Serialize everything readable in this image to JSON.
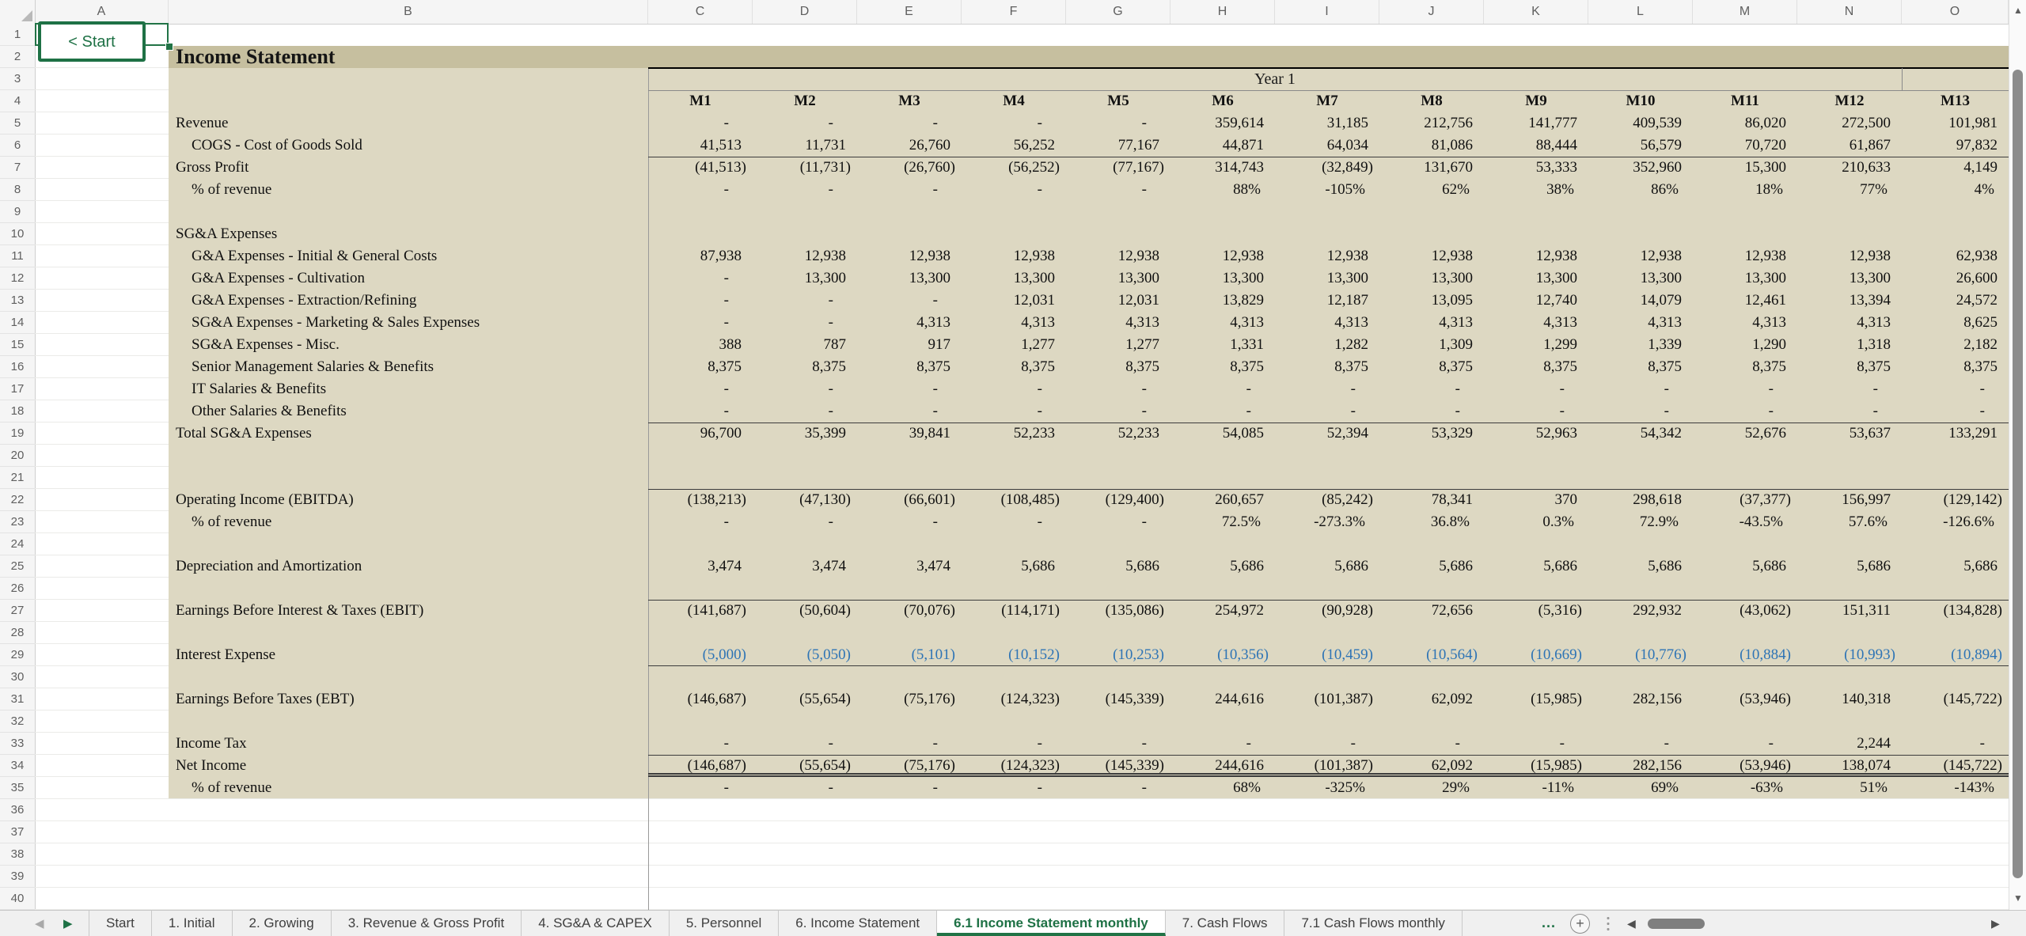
{
  "sheet": {
    "start_button_label": "< Start",
    "title": "Income Statement",
    "year_header": "Year 1",
    "column_letters": [
      "A",
      "B",
      "C",
      "D",
      "E",
      "F",
      "G",
      "H",
      "I",
      "J",
      "K",
      "L",
      "M",
      "N",
      "O"
    ],
    "row_count": 40,
    "month_headers": [
      "M1",
      "M2",
      "M3",
      "M4",
      "M5",
      "M6",
      "M7",
      "M8",
      "M9",
      "M10",
      "M11",
      "M12",
      "M13"
    ],
    "rows": [
      {
        "n": 5,
        "label": "Revenue",
        "indent": 0,
        "values": [
          "-",
          "-",
          "-",
          "-",
          "-",
          "359,614",
          "31,185",
          "212,756",
          "141,777",
          "409,539",
          "86,020",
          "272,500",
          "101,981"
        ]
      },
      {
        "n": 6,
        "label": "COGS - Cost of Goods Sold",
        "indent": 1,
        "values": [
          "41,513",
          "11,731",
          "26,760",
          "56,252",
          "77,167",
          "44,871",
          "64,034",
          "81,086",
          "88,444",
          "56,579",
          "70,720",
          "61,867",
          "97,832"
        ]
      },
      {
        "n": 7,
        "label": "Gross Profit",
        "indent": 0,
        "border": "top",
        "values": [
          "(41,513)",
          "(11,731)",
          "(26,760)",
          "(56,252)",
          "(77,167)",
          "314,743",
          "(32,849)",
          "131,670",
          "53,333",
          "352,960",
          "15,300",
          "210,633",
          "4,149"
        ]
      },
      {
        "n": 8,
        "label": "% of revenue",
        "indent": 1,
        "values": [
          "-",
          "-",
          "-",
          "-",
          "-",
          "88%",
          "-105%",
          "62%",
          "38%",
          "86%",
          "18%",
          "77%",
          "4%"
        ]
      },
      {
        "n": 10,
        "label": "SG&A Expenses",
        "indent": 0,
        "values": []
      },
      {
        "n": 11,
        "label": "G&A Expenses - Initial & General Costs",
        "indent": 1,
        "values": [
          "87,938",
          "12,938",
          "12,938",
          "12,938",
          "12,938",
          "12,938",
          "12,938",
          "12,938",
          "12,938",
          "12,938",
          "12,938",
          "12,938",
          "62,938"
        ]
      },
      {
        "n": 12,
        "label": "G&A Expenses - Cultivation",
        "indent": 1,
        "values": [
          "-",
          "13,300",
          "13,300",
          "13,300",
          "13,300",
          "13,300",
          "13,300",
          "13,300",
          "13,300",
          "13,300",
          "13,300",
          "13,300",
          "26,600"
        ]
      },
      {
        "n": 13,
        "label": "G&A Expenses - Extraction/Refining",
        "indent": 1,
        "values": [
          "-",
          "-",
          "-",
          "12,031",
          "12,031",
          "13,829",
          "12,187",
          "13,095",
          "12,740",
          "14,079",
          "12,461",
          "13,394",
          "24,572"
        ]
      },
      {
        "n": 14,
        "label": "SG&A Expenses - Marketing & Sales Expenses",
        "indent": 1,
        "values": [
          "-",
          "-",
          "4,313",
          "4,313",
          "4,313",
          "4,313",
          "4,313",
          "4,313",
          "4,313",
          "4,313",
          "4,313",
          "4,313",
          "8,625"
        ]
      },
      {
        "n": 15,
        "label": "SG&A Expenses - Misc.",
        "indent": 1,
        "values": [
          "388",
          "787",
          "917",
          "1,277",
          "1,277",
          "1,331",
          "1,282",
          "1,309",
          "1,299",
          "1,339",
          "1,290",
          "1,318",
          "2,182"
        ]
      },
      {
        "n": 16,
        "label": "Senior Management Salaries & Benefits",
        "indent": 1,
        "values": [
          "8,375",
          "8,375",
          "8,375",
          "8,375",
          "8,375",
          "8,375",
          "8,375",
          "8,375",
          "8,375",
          "8,375",
          "8,375",
          "8,375",
          "8,375"
        ]
      },
      {
        "n": 17,
        "label": "IT Salaries & Benefits",
        "indent": 1,
        "values": [
          "-",
          "-",
          "-",
          "-",
          "-",
          "-",
          "-",
          "-",
          "-",
          "-",
          "-",
          "-",
          "-"
        ]
      },
      {
        "n": 18,
        "label": "Other Salaries & Benefits",
        "indent": 1,
        "values": [
          "-",
          "-",
          "-",
          "-",
          "-",
          "-",
          "-",
          "-",
          "-",
          "-",
          "-",
          "-",
          "-"
        ]
      },
      {
        "n": 19,
        "label": "Total SG&A Expenses",
        "indent": 0,
        "border": "top",
        "values": [
          "96,700",
          "35,399",
          "39,841",
          "52,233",
          "52,233",
          "54,085",
          "52,394",
          "53,329",
          "52,963",
          "54,342",
          "52,676",
          "53,637",
          "133,291"
        ]
      },
      {
        "n": 22,
        "label": "Operating Income (EBITDA)",
        "indent": 0,
        "border": "top",
        "values": [
          "(138,213)",
          "(47,130)",
          "(66,601)",
          "(108,485)",
          "(129,400)",
          "260,657",
          "(85,242)",
          "78,341",
          "370",
          "298,618",
          "(37,377)",
          "156,997",
          "(129,142)"
        ]
      },
      {
        "n": 23,
        "label": "% of revenue",
        "indent": 1,
        "values": [
          "-",
          "-",
          "-",
          "-",
          "-",
          "72.5%",
          "-273.3%",
          "36.8%",
          "0.3%",
          "72.9%",
          "-43.5%",
          "57.6%",
          "-126.6%"
        ]
      },
      {
        "n": 25,
        "label": "Depreciation and Amortization",
        "indent": 0,
        "values": [
          "3,474",
          "3,474",
          "3,474",
          "5,686",
          "5,686",
          "5,686",
          "5,686",
          "5,686",
          "5,686",
          "5,686",
          "5,686",
          "5,686",
          "5,686"
        ]
      },
      {
        "n": 27,
        "label": "Earnings Before Interest & Taxes (EBIT)",
        "indent": 0,
        "border": "top",
        "values": [
          "(141,687)",
          "(50,604)",
          "(70,076)",
          "(114,171)",
          "(135,086)",
          "254,972",
          "(90,928)",
          "72,656",
          "(5,316)",
          "292,932",
          "(43,062)",
          "151,311",
          "(134,828)"
        ]
      },
      {
        "n": 29,
        "label": "Interest Expense",
        "indent": 0,
        "blue": true,
        "border": "bottom",
        "values": [
          "(5,000)",
          "(5,050)",
          "(5,101)",
          "(10,152)",
          "(10,253)",
          "(10,356)",
          "(10,459)",
          "(10,564)",
          "(10,669)",
          "(10,776)",
          "(10,884)",
          "(10,993)",
          "(10,894)"
        ]
      },
      {
        "n": 31,
        "label": "Earnings Before Taxes (EBT)",
        "indent": 0,
        "values": [
          "(146,687)",
          "(55,654)",
          "(75,176)",
          "(124,323)",
          "(145,339)",
          "244,616",
          "(101,387)",
          "62,092",
          "(15,985)",
          "282,156",
          "(53,946)",
          "140,318",
          "(145,722)"
        ]
      },
      {
        "n": 33,
        "label": "Income Tax",
        "indent": 0,
        "values": [
          "-",
          "-",
          "-",
          "-",
          "-",
          "-",
          "-",
          "-",
          "-",
          "-",
          "-",
          "2,244",
          "-"
        ]
      },
      {
        "n": 34,
        "label": "Net Income",
        "indent": 0,
        "border": "top-double",
        "values": [
          "(146,687)",
          "(55,654)",
          "(75,176)",
          "(124,323)",
          "(145,339)",
          "244,616",
          "(101,387)",
          "62,092",
          "(15,985)",
          "282,156",
          "(53,946)",
          "138,074",
          "(145,722)"
        ]
      },
      {
        "n": 35,
        "label": "% of revenue",
        "indent": 1,
        "values": [
          "-",
          "-",
          "-",
          "-",
          "-",
          "68%",
          "-325%",
          "29%",
          "-11%",
          "69%",
          "-63%",
          "51%",
          "-143%"
        ]
      }
    ]
  },
  "tabs": {
    "labels": [
      "Start",
      "1. Initial",
      "2. Growing",
      "3. Revenue & Gross Profit",
      "4. SG&A & CAPEX",
      "5. Personnel",
      "6. Income Statement",
      "6.1 Income Statement monthly",
      "7. Cash Flows",
      "7.1 Cash Flows monthly"
    ],
    "active": "6.1 Income Statement monthly",
    "active_index": 7,
    "more_indicator": "...",
    "add_sheet": "+"
  },
  "icons": {
    "up": "▲",
    "down": "▼",
    "left": "◀",
    "right": "▶"
  },
  "colors": {
    "accent_green": "#1e7145",
    "band_dark_tan": "#c6bf9f",
    "band_light_tan": "#ddd8c2",
    "interest_blue": "#2e74b5"
  }
}
